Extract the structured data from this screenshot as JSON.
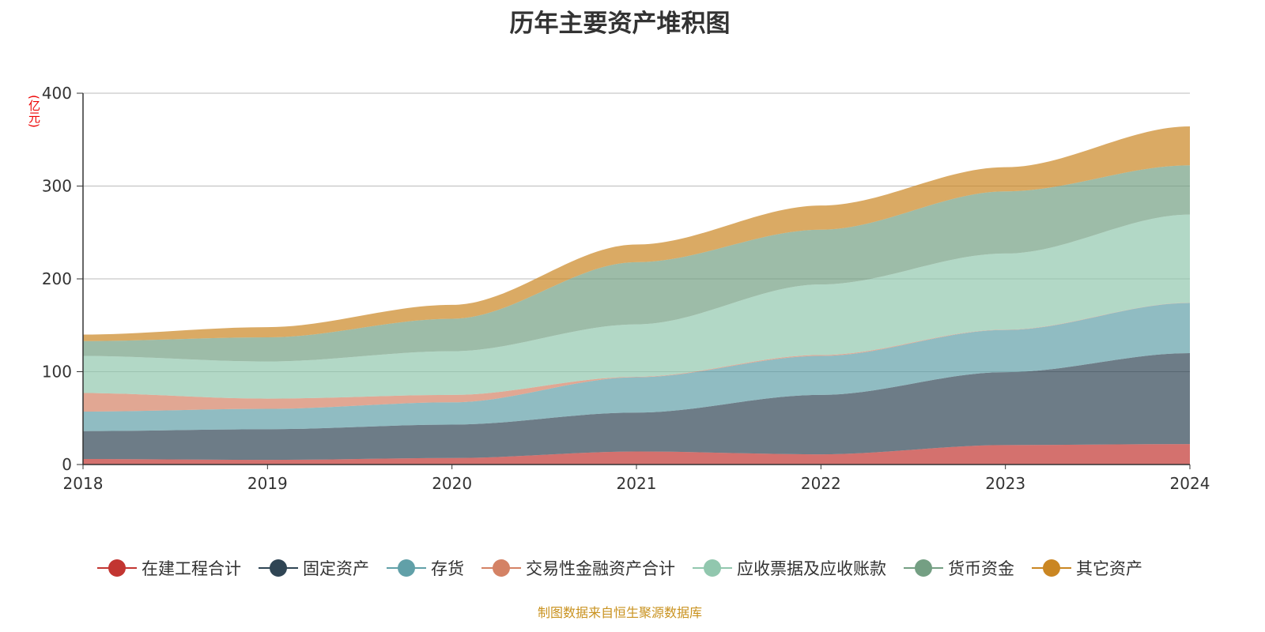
{
  "title": "历年主要资产堆积图",
  "unit": "(亿元)",
  "footer": "制图数据来自恒生聚源数据库",
  "chart_data": {
    "type": "area",
    "stacked": true,
    "title": "历年主要资产堆积图",
    "ylabel": "(亿元)",
    "categories": [
      "2018",
      "2019",
      "2020",
      "2021",
      "2022",
      "2023",
      "2024"
    ],
    "ylim": [
      0,
      400
    ],
    "yticks": [
      0,
      100,
      200,
      300,
      400
    ],
    "grid": true,
    "legend_position": "bottom",
    "series": [
      {
        "name": "在建工程合计",
        "color": "#c23531",
        "values": [
          6,
          5,
          7,
          14,
          11,
          21,
          22
        ]
      },
      {
        "name": "固定资产",
        "color": "#2f4554",
        "values": [
          30,
          33,
          36,
          42,
          64,
          78.5,
          98
        ]
      },
      {
        "name": "存货",
        "color": "#61a0a8",
        "values": [
          21,
          22,
          24,
          38,
          42,
          45.5,
          54
        ]
      },
      {
        "name": "交易性金融资产合计",
        "color": "#d48265",
        "values": [
          20,
          11,
          8,
          0.5,
          1,
          0.3,
          0.3
        ]
      },
      {
        "name": "应收票据及应收账款",
        "color": "#91c7ae",
        "values": [
          40,
          40,
          47,
          56.5,
          76,
          82,
          95
        ]
      },
      {
        "name": "货币资金",
        "color": "#749f83",
        "values": [
          16,
          26,
          35,
          67,
          59,
          67,
          53
        ]
      },
      {
        "name": "其它资产",
        "color": "#ca8622",
        "values": [
          7,
          11,
          15,
          19,
          26,
          26,
          42
        ]
      }
    ]
  }
}
